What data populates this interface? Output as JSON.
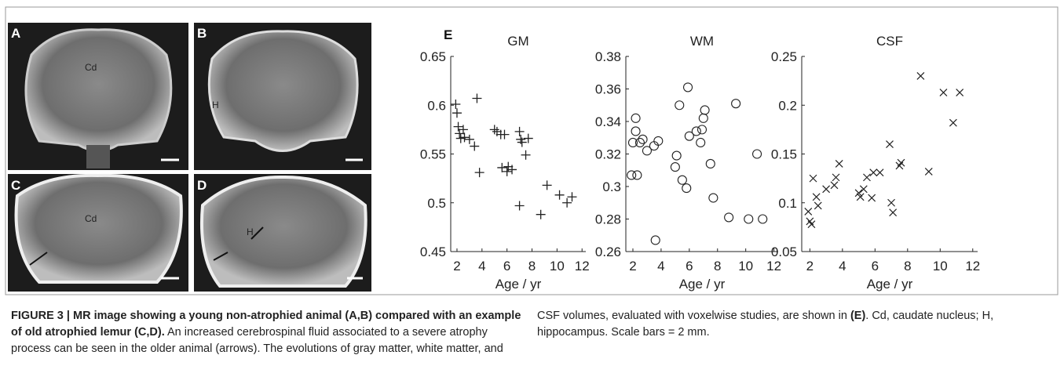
{
  "figure": {
    "panels": [
      {
        "label": "A",
        "annotation": "Cd"
      },
      {
        "label": "B",
        "annotation": "H"
      },
      {
        "label": "C",
        "annotation": "Cd"
      },
      {
        "label": "D",
        "annotation": "H"
      }
    ],
    "chart_label": "E"
  },
  "chart_data": [
    {
      "type": "scatter",
      "title": "GM",
      "xlabel": "Age / yr",
      "marker": "plus",
      "color": "#222222",
      "xlim": [
        1.5,
        12.3
      ],
      "xticks": [
        2,
        4,
        6,
        8,
        10,
        12
      ],
      "ylim": [
        0.45,
        0.65
      ],
      "yticks": [
        0.45,
        0.5,
        0.55,
        0.6,
        0.65
      ],
      "x": [
        1.9,
        2.0,
        2.1,
        2.2,
        2.3,
        2.5,
        2.6,
        3.0,
        3.4,
        3.6,
        3.8,
        5.0,
        5.2,
        5.5,
        5.6,
        5.8,
        6.0,
        6.1,
        6.4,
        7.0,
        7.1,
        7.2,
        7.0,
        7.5,
        7.7,
        8.7,
        9.2,
        10.2,
        10.8,
        11.2
      ],
      "values": [
        0.601,
        0.592,
        0.578,
        0.571,
        0.566,
        0.575,
        0.567,
        0.565,
        0.558,
        0.607,
        0.531,
        0.575,
        0.573,
        0.57,
        0.536,
        0.57,
        0.532,
        0.537,
        0.534,
        0.573,
        0.565,
        0.562,
        0.497,
        0.549,
        0.566,
        0.488,
        0.518,
        0.508,
        0.5,
        0.506
      ]
    },
    {
      "type": "scatter",
      "title": "WM",
      "xlabel": "Age / yr",
      "marker": "circle",
      "color": "#222222",
      "xlim": [
        1.5,
        12.3
      ],
      "xticks": [
        2,
        4,
        6,
        8,
        10,
        12
      ],
      "ylim": [
        0.26,
        0.38
      ],
      "yticks": [
        0.26,
        0.28,
        0.3,
        0.32,
        0.34,
        0.36,
        0.38
      ],
      "x": [
        1.9,
        2.0,
        2.2,
        2.2,
        2.3,
        2.5,
        2.7,
        3.0,
        3.6,
        3.5,
        3.8,
        5.0,
        5.1,
        5.3,
        5.5,
        5.8,
        5.9,
        6.0,
        6.5,
        6.8,
        6.9,
        7.0,
        7.1,
        7.5,
        7.7,
        8.8,
        9.3,
        10.2,
        10.8,
        11.2
      ],
      "values": [
        0.307,
        0.327,
        0.342,
        0.334,
        0.307,
        0.327,
        0.329,
        0.322,
        0.267,
        0.325,
        0.328,
        0.312,
        0.319,
        0.35,
        0.304,
        0.299,
        0.361,
        0.331,
        0.334,
        0.327,
        0.335,
        0.342,
        0.347,
        0.314,
        0.293,
        0.281,
        0.351,
        0.28,
        0.32,
        0.28
      ]
    },
    {
      "type": "scatter",
      "title": "CSF",
      "xlabel": "Age / yr",
      "marker": "cross",
      "color": "#222222",
      "xlim": [
        1.5,
        12.3
      ],
      "xticks": [
        2,
        4,
        6,
        8,
        10,
        12
      ],
      "ylim": [
        0.05,
        0.25
      ],
      "yticks": [
        0.05,
        0.1,
        0.15,
        0.2,
        0.25
      ],
      "x": [
        1.9,
        2.0,
        2.1,
        2.2,
        2.4,
        2.5,
        3.0,
        3.5,
        3.6,
        3.8,
        5.0,
        5.1,
        5.3,
        5.5,
        5.8,
        5.9,
        6.3,
        6.9,
        7.0,
        7.1,
        7.5,
        7.6,
        8.8,
        9.3,
        10.2,
        10.8,
        11.2
      ],
      "values": [
        0.091,
        0.081,
        0.078,
        0.125,
        0.106,
        0.097,
        0.114,
        0.118,
        0.126,
        0.14,
        0.11,
        0.106,
        0.114,
        0.126,
        0.105,
        0.131,
        0.131,
        0.16,
        0.1,
        0.09,
        0.138,
        0.141,
        0.23,
        0.132,
        0.213,
        0.182,
        0.213
      ]
    }
  ],
  "caption": {
    "lead": "FIGURE 3 | MR image showing a young non-atrophied animal (A,B) compared with an example of old atrophied lemur (C,D).",
    "body_1": " An increased cerebrospinal fluid associated to a severe atrophy process can be seen in the older animal (arrows). The evolutions of gray matter, white matter, and CSF volumes, evaluated with voxelwise studies, are shown in ",
    "ref": "(E)",
    "body_2": ". Cd, caudate nucleus; H, hippocampus. Scale bars = 2 mm."
  }
}
